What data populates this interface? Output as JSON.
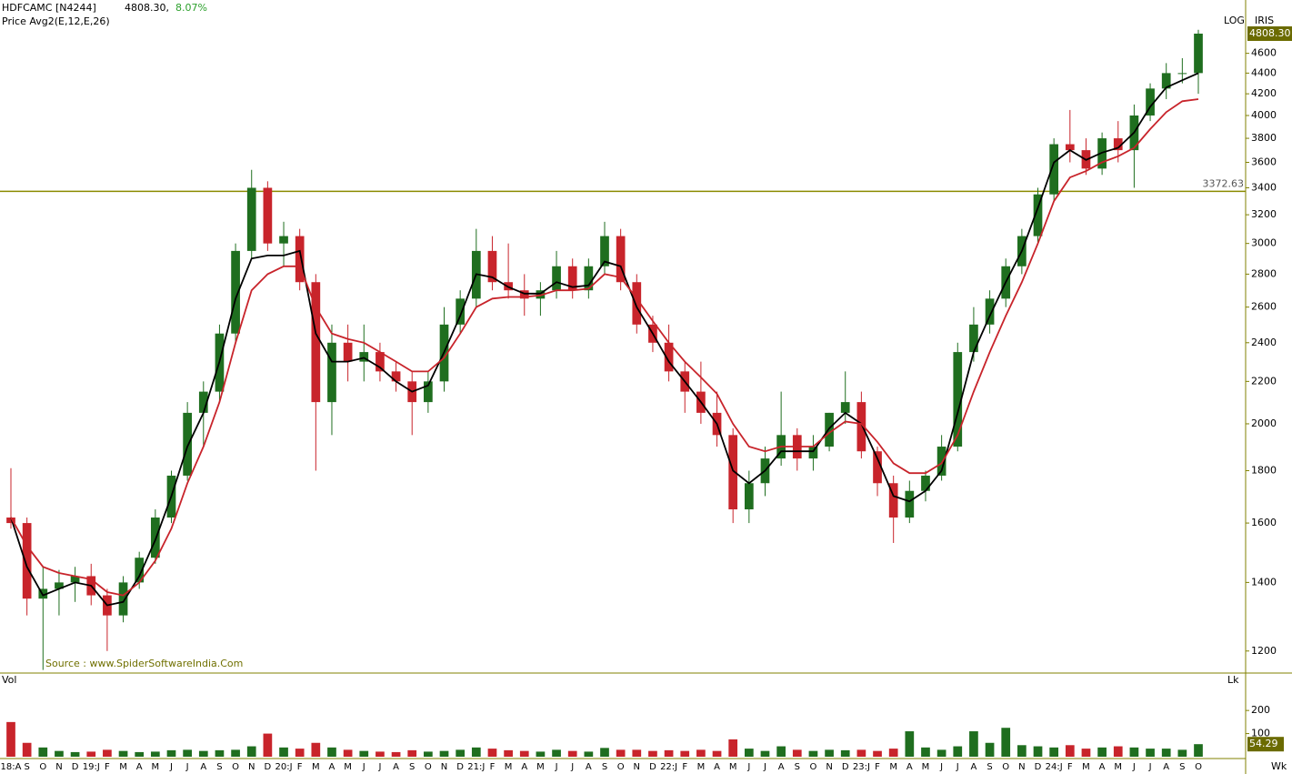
{
  "header": {
    "symbol": "HDFCAMC [N4244]",
    "price": "4808.30,",
    "change": "8.07%",
    "legend": "Price  Avg2(E,12,E,26)",
    "scale": "LOG",
    "tag": "IRIS",
    "source": "Source : www.SpiderSoftwareIndia.Com",
    "volume_title": "Vol",
    "volume_unit": "Lk",
    "period": "Wk"
  },
  "chart_data": {
    "type": "candlestick",
    "log_scale": true,
    "categories": [
      "18:A",
      "S",
      "O",
      "N",
      "D",
      "19:J",
      "F",
      "M",
      "A",
      "M",
      "J",
      "J",
      "A",
      "S",
      "O",
      "N",
      "D",
      "20:J",
      "F",
      "M",
      "A",
      "M",
      "J",
      "J",
      "A",
      "S",
      "O",
      "N",
      "D",
      "21:J",
      "F",
      "M",
      "A",
      "M",
      "J",
      "J",
      "A",
      "S",
      "O",
      "N",
      "D",
      "22:J",
      "F",
      "M",
      "A",
      "M",
      "J",
      "J",
      "A",
      "S",
      "O",
      "N",
      "D",
      "23:J",
      "F",
      "M",
      "A",
      "M",
      "J",
      "J",
      "A",
      "S",
      "O",
      "N",
      "D",
      "24:J",
      "F",
      "M",
      "A",
      "M",
      "J",
      "J",
      "A",
      "S",
      "O"
    ],
    "open": [
      1620,
      1600,
      1350,
      1380,
      1400,
      1420,
      1360,
      1300,
      1400,
      1480,
      1620,
      1780,
      2050,
      2150,
      2450,
      2950,
      3400,
      3000,
      3050,
      2750,
      2100,
      2400,
      2300,
      2350,
      2250,
      2200,
      2100,
      2200,
      2500,
      2650,
      2950,
      2750,
      2700,
      2650,
      2700,
      2850,
      2700,
      2850,
      3050,
      2750,
      2500,
      2400,
      2250,
      2150,
      2050,
      1950,
      1650,
      1750,
      1850,
      1950,
      1850,
      1900,
      2050,
      2100,
      1880,
      1750,
      1620,
      1720,
      1780,
      1900,
      2350,
      2500,
      2650,
      2850,
      3050,
      3350,
      3750,
      3700,
      3550,
      3800,
      3700,
      4000,
      4250,
      4400,
      4400
    ],
    "high": [
      1810,
      1620,
      1450,
      1440,
      1450,
      1460,
      1380,
      1420,
      1500,
      1650,
      1800,
      2100,
      2200,
      2500,
      3000,
      3540,
      3450,
      3150,
      3100,
      2800,
      2500,
      2500,
      2500,
      2400,
      2300,
      2250,
      2250,
      2600,
      2700,
      3100,
      3050,
      3000,
      2800,
      2750,
      2950,
      2900,
      2900,
      3150,
      3100,
      2800,
      2550,
      2500,
      2300,
      2300,
      2150,
      1980,
      1800,
      1900,
      2150,
      1980,
      1950,
      2050,
      2250,
      2150,
      1900,
      1780,
      1760,
      1800,
      1950,
      2400,
      2600,
      2700,
      2900,
      3100,
      3400,
      3800,
      4050,
      3800,
      3850,
      3950,
      4100,
      4300,
      4500,
      4550,
      4850
    ],
    "low": [
      1580,
      1300,
      1150,
      1300,
      1340,
      1330,
      1200,
      1280,
      1380,
      1460,
      1600,
      1760,
      1900,
      2100,
      2400,
      2900,
      2950,
      2850,
      2700,
      1800,
      1950,
      2200,
      2200,
      2200,
      2150,
      1950,
      2050,
      2150,
      2450,
      2600,
      2700,
      2650,
      2550,
      2550,
      2650,
      2650,
      2650,
      2800,
      2700,
      2450,
      2350,
      2200,
      2050,
      2000,
      1900,
      1600,
      1600,
      1700,
      1820,
      1800,
      1800,
      1880,
      2000,
      1850,
      1700,
      1530,
      1600,
      1680,
      1760,
      1880,
      2300,
      2450,
      2600,
      2800,
      3000,
      3300,
      3600,
      3500,
      3500,
      3600,
      3400,
      3950,
      4150,
      4300,
      4200
    ],
    "close": [
      1600,
      1350,
      1380,
      1400,
      1420,
      1360,
      1300,
      1400,
      1480,
      1620,
      1780,
      2050,
      2150,
      2450,
      2950,
      3400,
      3000,
      3050,
      2750,
      2100,
      2400,
      2300,
      2350,
      2250,
      2200,
      2100,
      2200,
      2500,
      2650,
      2950,
      2750,
      2700,
      2650,
      2700,
      2850,
      2700,
      2850,
      3050,
      2750,
      2500,
      2400,
      2250,
      2150,
      2050,
      1950,
      1650,
      1750,
      1850,
      1950,
      1850,
      1900,
      2050,
      2100,
      1880,
      1750,
      1620,
      1720,
      1780,
      1900,
      2350,
      2500,
      2650,
      2850,
      3050,
      3350,
      3750,
      3700,
      3550,
      3800,
      3700,
      4000,
      4250,
      4400,
      4400,
      4808.3
    ],
    "up_color": "#1f6e1f",
    "down_color": "#c8242b",
    "lines": [
      {
        "color": "#000000",
        "values": [
          1620,
          1450,
          1360,
          1380,
          1400,
          1390,
          1330,
          1340,
          1420,
          1540,
          1700,
          1900,
          2050,
          2300,
          2650,
          2900,
          2920,
          2920,
          2950,
          2450,
          2300,
          2300,
          2320,
          2270,
          2200,
          2150,
          2180,
          2350,
          2550,
          2800,
          2780,
          2720,
          2680,
          2680,
          2750,
          2720,
          2730,
          2880,
          2850,
          2600,
          2450,
          2300,
          2200,
          2100,
          2000,
          1800,
          1750,
          1800,
          1880,
          1880,
          1880,
          1980,
          2050,
          2000,
          1850,
          1700,
          1680,
          1720,
          1800,
          2050,
          2350,
          2550,
          2750,
          2950,
          3250,
          3600,
          3700,
          3620,
          3680,
          3720,
          3850,
          4080,
          4260,
          4330,
          4400
        ]
      },
      {
        "color": "#c8242b",
        "values": [
          1620,
          1520,
          1450,
          1430,
          1420,
          1410,
          1370,
          1360,
          1400,
          1470,
          1580,
          1750,
          1900,
          2100,
          2400,
          2700,
          2800,
          2850,
          2850,
          2600,
          2450,
          2420,
          2400,
          2350,
          2300,
          2250,
          2250,
          2320,
          2450,
          2600,
          2650,
          2660,
          2660,
          2670,
          2700,
          2700,
          2710,
          2800,
          2780,
          2650,
          2520,
          2400,
          2300,
          2220,
          2140,
          2000,
          1900,
          1880,
          1900,
          1900,
          1900,
          1960,
          2010,
          2000,
          1920,
          1830,
          1790,
          1790,
          1830,
          1950,
          2150,
          2350,
          2550,
          2750,
          3000,
          3300,
          3480,
          3530,
          3600,
          3650,
          3720,
          3880,
          4030,
          4130,
          4150
        ]
      }
    ],
    "ylim": [
      1142,
      5186
    ],
    "yticks": [
      1200,
      1400,
      1600,
      1800,
      2000,
      2200,
      2400,
      2600,
      2800,
      3000,
      3200,
      3400,
      3600,
      3800,
      4000,
      4200,
      4400,
      4600
    ],
    "price_marker": {
      "value": 4808.3,
      "label": "4808.30"
    },
    "hline": {
      "value": 3372.63,
      "label": "3372.63"
    },
    "volume": {
      "values": [
        150,
        60,
        40,
        25,
        20,
        22,
        30,
        25,
        20,
        22,
        28,
        30,
        25,
        28,
        30,
        45,
        100,
        40,
        35,
        60,
        40,
        30,
        25,
        22,
        20,
        28,
        22,
        25,
        30,
        40,
        35,
        28,
        25,
        22,
        30,
        25,
        22,
        38,
        30,
        30,
        25,
        28,
        25,
        30,
        25,
        75,
        35,
        25,
        45,
        30,
        25,
        30,
        28,
        30,
        25,
        35,
        110,
        40,
        30,
        45,
        110,
        60,
        125,
        50,
        45,
        40,
        50,
        35,
        40,
        45,
        40,
        35,
        35,
        30,
        54.29
      ],
      "ylim": [
        0,
        354
      ],
      "yticks": [
        100,
        200
      ],
      "marker": {
        "value": 54.29,
        "label": "54.29"
      }
    }
  }
}
